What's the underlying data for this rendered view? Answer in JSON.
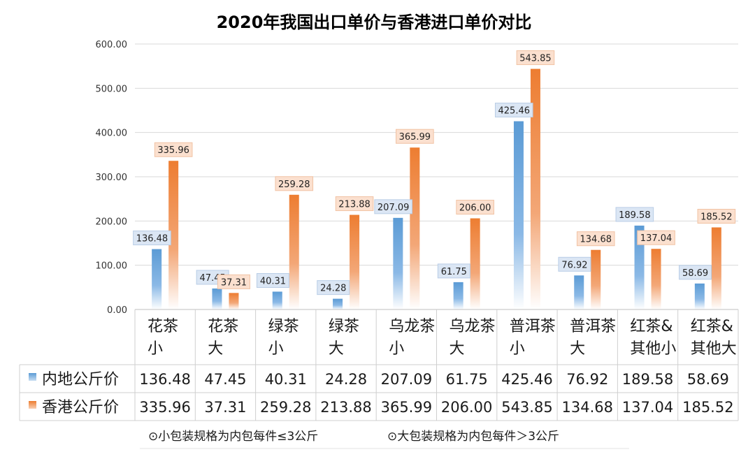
{
  "chart_data": {
    "type": "bar",
    "title": "2020年我国出口单价与香港进口单价对比",
    "categories": [
      [
        "花茶",
        "小"
      ],
      [
        "花茶",
        "大"
      ],
      [
        "绿茶",
        "小"
      ],
      [
        "绿茶",
        "大"
      ],
      [
        "乌龙茶",
        "小"
      ],
      [
        "乌龙茶",
        "大"
      ],
      [
        "普洱茶",
        "小"
      ],
      [
        "普洱茶",
        "大"
      ],
      [
        "红茶&",
        "其他小"
      ],
      [
        "红茶&",
        "其他大"
      ]
    ],
    "series": [
      {
        "name": "内地公斤价",
        "color": "#5b9bd5",
        "values": [
          136.48,
          47.45,
          40.31,
          24.28,
          207.09,
          61.75,
          425.46,
          76.92,
          189.58,
          58.69
        ],
        "labels": [
          "136.48",
          "47.45",
          "40.31",
          "24.28",
          "207.09",
          "61.75",
          "425.46",
          "76.92",
          "189.58",
          "58.69"
        ]
      },
      {
        "name": "香港公斤价",
        "color": "#ed7d31",
        "values": [
          335.96,
          37.31,
          259.28,
          213.88,
          365.99,
          206.0,
          543.85,
          134.68,
          137.04,
          185.52
        ],
        "labels": [
          "335.96",
          "37.31",
          "259.28",
          "213.88",
          "365.99",
          "206.00",
          "543.85",
          "134.68",
          "137.04",
          "185.52"
        ]
      }
    ],
    "ylim": [
      0,
      600
    ],
    "yticks": [
      "0.00",
      "100.00",
      "200.00",
      "300.00",
      "400.00",
      "500.00",
      "600.00"
    ],
    "grid": true,
    "legend": "data-table",
    "footnotes": [
      "⊙小包装规格为内包每件≤3公斤",
      "⊙大包装规格为内包每件＞3公斤"
    ]
  }
}
